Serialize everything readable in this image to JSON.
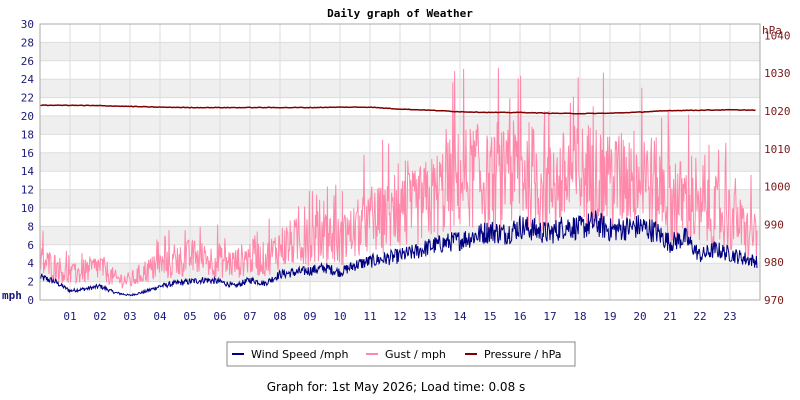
{
  "chart_data": {
    "type": "line",
    "title": "Daily graph of Weather",
    "xlabel": "",
    "x_ticks": [
      "01",
      "02",
      "03",
      "04",
      "05",
      "06",
      "07",
      "08",
      "09",
      "10",
      "11",
      "12",
      "13",
      "14",
      "15",
      "16",
      "17",
      "18",
      "19",
      "20",
      "21",
      "22",
      "23"
    ],
    "x_range": [
      0,
      24
    ],
    "y_left": {
      "label": "mph",
      "ticks": [
        "0",
        "2",
        "4",
        "6",
        "8",
        "10",
        "12",
        "14",
        "16",
        "18",
        "20",
        "22",
        "24",
        "26",
        "28",
        "30"
      ],
      "ylim": [
        0,
        30
      ]
    },
    "y_right": {
      "label": "hPa",
      "ticks": [
        "970",
        "980",
        "990",
        "1000",
        "1010",
        "1020",
        "1030",
        "1040"
      ],
      "ylim": [
        970,
        1043
      ]
    },
    "grid": true,
    "legend_position": "bottom",
    "series": [
      {
        "name": "Wind Speed /mph",
        "axis": "left",
        "color": "#000080",
        "x": [
          0,
          0.5,
          1,
          1.5,
          2,
          2.5,
          3,
          3.5,
          4,
          4.5,
          5,
          5.5,
          6,
          6.5,
          7,
          7.5,
          8,
          8.5,
          9,
          9.5,
          10,
          10.5,
          11,
          11.5,
          12,
          12.5,
          13,
          13.5,
          14,
          14.5,
          15,
          15.5,
          16,
          16.5,
          17,
          17.5,
          18,
          18.5,
          19,
          19.5,
          20,
          20.5,
          21,
          21.5,
          22,
          22.5,
          23,
          23.5,
          23.9
        ],
        "values": [
          2.5,
          2.0,
          1.0,
          1.2,
          1.5,
          0.8,
          0.5,
          0.9,
          1.5,
          1.8,
          2.0,
          2.2,
          2.0,
          1.5,
          2.2,
          1.8,
          2.8,
          3.0,
          3.2,
          3.5,
          3.0,
          3.8,
          4.2,
          4.5,
          4.8,
          5.2,
          5.8,
          6.2,
          6.5,
          7.0,
          7.5,
          7.2,
          8.0,
          7.6,
          7.2,
          8.1,
          7.8,
          8.4,
          7.6,
          7.8,
          8.0,
          7.5,
          6.2,
          6.8,
          4.8,
          5.5,
          5.0,
          4.5,
          4.2
        ]
      },
      {
        "name": "Gust / mph",
        "axis": "left",
        "color": "#ff88aa",
        "x": [
          0,
          0.5,
          1,
          1.5,
          2,
          2.5,
          3,
          3.5,
          4,
          4.5,
          5,
          5.5,
          6,
          6.5,
          7,
          7.5,
          8,
          8.5,
          9,
          9.5,
          10,
          10.5,
          11,
          11.5,
          12,
          12.5,
          13,
          13.5,
          14,
          14.5,
          15,
          15.5,
          16,
          16.5,
          17,
          17.5,
          18,
          18.5,
          19,
          19.5,
          20,
          20.5,
          21,
          21.5,
          22,
          22.5,
          23,
          23.5,
          23.9
        ],
        "values": [
          4.0,
          3.5,
          2.5,
          3.0,
          3.5,
          2.2,
          2.0,
          3.0,
          3.5,
          3.8,
          4.5,
          4.2,
          4.0,
          3.8,
          4.5,
          4.2,
          5.5,
          6.0,
          6.2,
          6.8,
          6.0,
          7.2,
          8.0,
          8.5,
          9.0,
          9.5,
          10.5,
          11.5,
          12.5,
          13.0,
          12.0,
          12.5,
          13.5,
          12.8,
          11.5,
          12.5,
          13.0,
          13.2,
          12.0,
          12.5,
          12.8,
          12.0,
          10.0,
          10.5,
          8.5,
          9.0,
          8.5,
          7.0,
          6.5
        ]
      },
      {
        "name": "Pressure / hPa",
        "axis": "right",
        "color": "#800000",
        "x": [
          0,
          1,
          2,
          3,
          4,
          5,
          6,
          7,
          8,
          9,
          10,
          11,
          12,
          13,
          14,
          15,
          16,
          17,
          18,
          19,
          20,
          21,
          22,
          23,
          23.9
        ],
        "values": [
          1021.5,
          1021.5,
          1021.4,
          1021.2,
          1021.0,
          1020.9,
          1020.9,
          1020.9,
          1020.9,
          1020.9,
          1021.0,
          1021.0,
          1020.5,
          1020.2,
          1019.8,
          1019.6,
          1019.6,
          1019.4,
          1019.3,
          1019.4,
          1019.7,
          1020.1,
          1020.2,
          1020.3,
          1020.2
        ]
      }
    ]
  },
  "footer": {
    "text": "Graph for: 1st May 2026; Load time: 0.08 s"
  }
}
